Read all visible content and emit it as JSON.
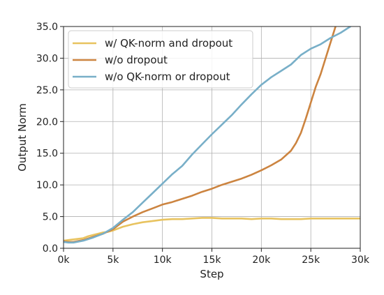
{
  "chart_data": {
    "type": "line",
    "title": "",
    "xlabel": "Step",
    "ylabel": "Output Norm",
    "xlim": [
      0,
      30000
    ],
    "ylim": [
      0,
      35
    ],
    "grid": true,
    "legend_position": "top-left",
    "xticks": [
      0,
      5000,
      10000,
      15000,
      20000,
      25000,
      30000
    ],
    "xtick_labels": [
      "0k",
      "5k",
      "10k",
      "15k",
      "20k",
      "25k",
      "30k"
    ],
    "yticks": [
      0,
      5,
      10,
      15,
      20,
      25,
      30,
      35
    ],
    "ytick_labels": [
      "0.0",
      "5.0",
      "10.0",
      "15.0",
      "20.0",
      "25.0",
      "30.0",
      "35.0"
    ],
    "series": [
      {
        "name": "w/ QK-norm and dropout",
        "color": "#e8c35f",
        "x": [
          0,
          500,
          1000,
          1500,
          2000,
          2500,
          3000,
          3500,
          4000,
          4500,
          5000,
          5500,
          6000,
          7000,
          8000,
          9000,
          10000,
          11000,
          12000,
          13000,
          14000,
          15000,
          16000,
          17000,
          18000,
          19000,
          20000,
          21000,
          22000,
          23000,
          24000,
          25000,
          26000,
          27000,
          28000,
          29000,
          30000
        ],
        "y": [
          1.2,
          1.3,
          1.4,
          1.5,
          1.6,
          1.9,
          2.1,
          2.3,
          2.5,
          2.6,
          2.8,
          3.1,
          3.4,
          3.8,
          4.1,
          4.3,
          4.5,
          4.6,
          4.6,
          4.7,
          4.8,
          4.8,
          4.7,
          4.7,
          4.7,
          4.6,
          4.7,
          4.7,
          4.6,
          4.6,
          4.6,
          4.7,
          4.7,
          4.7,
          4.7,
          4.7,
          4.7
        ]
      },
      {
        "name": "w/o dropout",
        "color": "#cc8440",
        "x": [
          0,
          500,
          1000,
          2000,
          3000,
          4000,
          5000,
          6000,
          7000,
          8000,
          9000,
          10000,
          11000,
          12000,
          13000,
          14000,
          15000,
          16000,
          17000,
          18000,
          19000,
          20000,
          21000,
          22000,
          23000,
          23500,
          24000,
          24500,
          25000,
          25500,
          26000,
          26500,
          27000,
          27500
        ],
        "y": [
          1.1,
          1.0,
          1.0,
          1.3,
          1.8,
          2.3,
          3.0,
          4.2,
          5.0,
          5.7,
          6.3,
          6.9,
          7.3,
          7.8,
          8.3,
          8.9,
          9.4,
          10.0,
          10.5,
          11.0,
          11.6,
          12.3,
          13.1,
          14.0,
          15.4,
          16.6,
          18.2,
          20.5,
          23.0,
          25.5,
          27.5,
          30.0,
          32.5,
          35.0
        ]
      },
      {
        "name": "w/o QK-norm or dropout",
        "color": "#78afc8",
        "x": [
          0,
          500,
          1000,
          2000,
          3000,
          4000,
          5000,
          6000,
          7000,
          8000,
          9000,
          10000,
          11000,
          12000,
          13000,
          14000,
          15000,
          16000,
          17000,
          18000,
          19000,
          20000,
          21000,
          22000,
          23000,
          24000,
          25000,
          26000,
          27000,
          28000,
          29000
        ],
        "y": [
          1.0,
          0.9,
          0.9,
          1.2,
          1.7,
          2.3,
          3.2,
          4.5,
          5.7,
          7.2,
          8.7,
          10.2,
          11.7,
          13.0,
          14.8,
          16.4,
          18.0,
          19.5,
          21.0,
          22.7,
          24.3,
          25.8,
          27.0,
          28.0,
          29.0,
          30.5,
          31.5,
          32.2,
          33.2,
          34.0,
          35.0
        ]
      }
    ]
  }
}
